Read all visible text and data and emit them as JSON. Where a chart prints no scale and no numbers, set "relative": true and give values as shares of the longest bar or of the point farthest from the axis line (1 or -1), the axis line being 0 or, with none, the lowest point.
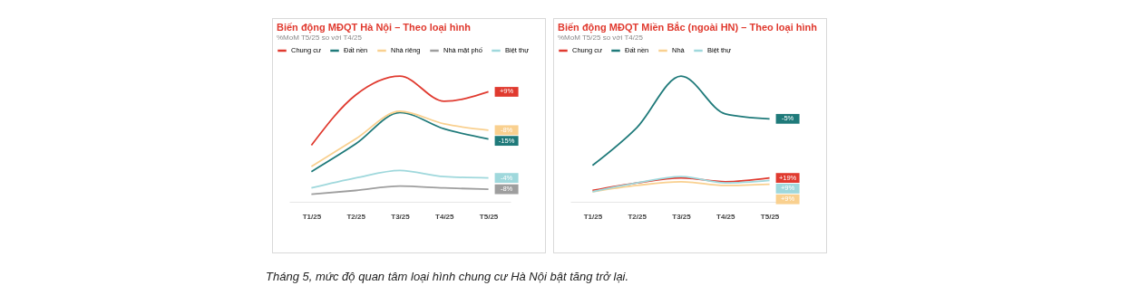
{
  "chart_data": [
    {
      "type": "line",
      "title": "Biến động MĐQT Hà Nội – Theo loại hình",
      "subtitle": "%MoM T5/25 so với T4/25",
      "relative": true,
      "legend": "top",
      "grid": false,
      "marker": "none",
      "line_style": "solid",
      "categories": [
        "T1/25",
        "T2/25",
        "T3/25",
        "T4/25",
        "T5/25"
      ],
      "annotations": [
        "Tháng 5, mức độ quan tâm loại hình chung cư Hà Nội bật tăng trở lại.",
        {
          "text": "+9%",
          "x": "T5/25",
          "y": 0.875
        },
        {
          "text": "-15%",
          "x": "T5/25",
          "y": 0.5
        },
        {
          "text": "-8%",
          "x": "T5/25",
          "y": 0.57
        },
        {
          "text": "-8%",
          "x": "T5/25",
          "y": 0.1
        },
        {
          "text": "-4%",
          "x": "T5/25",
          "y": 0.19
        }
      ],
      "series": [
        {
          "name": "Chung cư",
          "color": "#e03a2f",
          "values": [
            0.45,
            0.85,
            1,
            0.8,
            0.875
          ]
        },
        {
          "name": "Đất nền",
          "color": "#1f7a7a",
          "values": [
            0.24,
            0.46,
            0.71,
            0.58,
            0.5
          ]
        },
        {
          "name": "Nhà riêng",
          "color": "#f9d08f",
          "values": [
            0.28,
            0.5,
            0.72,
            0.62,
            0.57
          ]
        },
        {
          "name": "Nhà mặt phố",
          "color": "#9e9e9e",
          "values": [
            0.06,
            0.09,
            0.125,
            0.11,
            0.1
          ]
        },
        {
          "name": "Biệt thự",
          "color": "#9fd8dc",
          "values": [
            0.11,
            0.19,
            0.25,
            0.2,
            0.19
          ]
        }
      ]
    },
    {
      "type": "line",
      "title": "Biến động MĐQT Miền Bắc (ngoài HN) – Theo loại hình",
      "subtitle": "%MoM T5/25 so với T4/25",
      "relative": true,
      "legend": "top",
      "grid": false,
      "marker": "none",
      "line_style": "solid",
      "categories": [
        "T1/25",
        "T2/25",
        "T3/25",
        "T4/25",
        "T5/25"
      ],
      "annotations": [
        {
          "text": "+19%",
          "x": "T5/25",
          "y": 0.19
        },
        {
          "text": "-5%",
          "x": "T5/25",
          "y": 0.66
        },
        {
          "text": "+9%",
          "x": "T5/25",
          "y": 0.14
        },
        {
          "text": "+9%",
          "x": "T5/25",
          "y": 0.17
        }
      ],
      "series": [
        {
          "name": "Chung cư",
          "color": "#e03a2f",
          "values": [
            0.09,
            0.15,
            0.19,
            0.16,
            0.19
          ]
        },
        {
          "name": "Đất nền",
          "color": "#1f7a7a",
          "values": [
            0.29,
            0.59,
            1,
            0.7,
            0.66
          ]
        },
        {
          "name": "Nhà",
          "color": "#f9d08f",
          "values": [
            0.08,
            0.13,
            0.16,
            0.13,
            0.14
          ]
        },
        {
          "name": "Biệt thự",
          "color": "#9fd8dc",
          "values": [
            0.08,
            0.15,
            0.2,
            0.15,
            0.17
          ]
        }
      ]
    }
  ]
}
